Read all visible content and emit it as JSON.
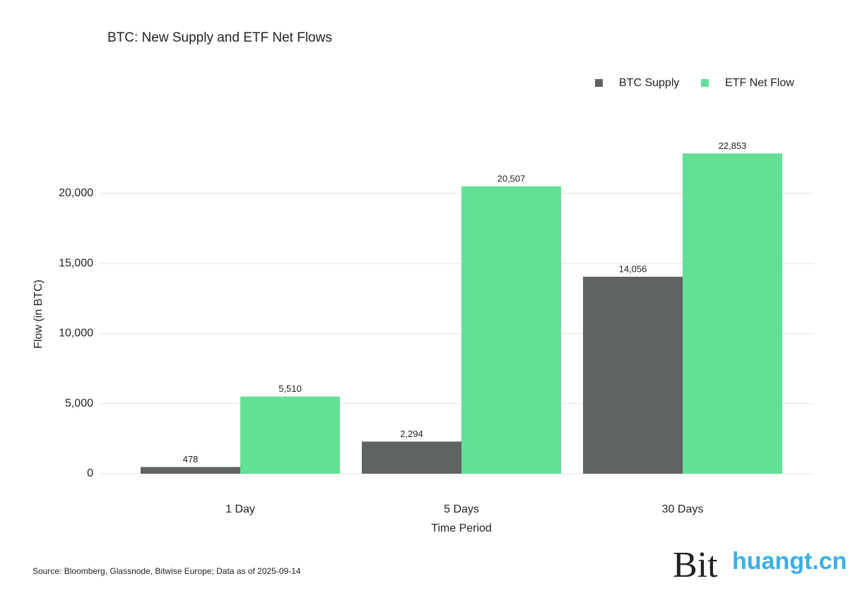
{
  "chart_data": {
    "type": "bar",
    "title": "BTC: New Supply and ETF Net Flows",
    "x_label": "Time Period",
    "y_label": "Flow (in BTC)",
    "source": "Source: Bloomberg, Glassnode, Bitwise Europe; Data as of 2025-09-14",
    "logo": "Bit",
    "watermark": "huangt.cn",
    "categories": [
      "1 Day",
      "5 Days",
      "30 Days"
    ],
    "series": [
      {
        "name": "BTC Supply",
        "color": "#5f6361",
        "values": [
          478,
          2294,
          14056
        ],
        "value_labels": [
          "478",
          "2,294",
          "14,056"
        ]
      },
      {
        "name": "ETF Net Flow",
        "color": "#63e096",
        "values": [
          5510,
          20507,
          22853
        ],
        "value_labels": [
          "5,510",
          "20,507",
          "22,853"
        ]
      }
    ],
    "ylim": [
      0,
      24000
    ],
    "yticks": [
      0,
      {
        "value": 5000,
        "label": "5,000"
      },
      {
        "value": 10000,
        "label": "10,000"
      },
      {
        "value": 15000,
        "label": "15,000"
      },
      {
        "value": 20000,
        "label": "20,000"
      }
    ],
    "grid": true,
    "legend": "top-right"
  }
}
